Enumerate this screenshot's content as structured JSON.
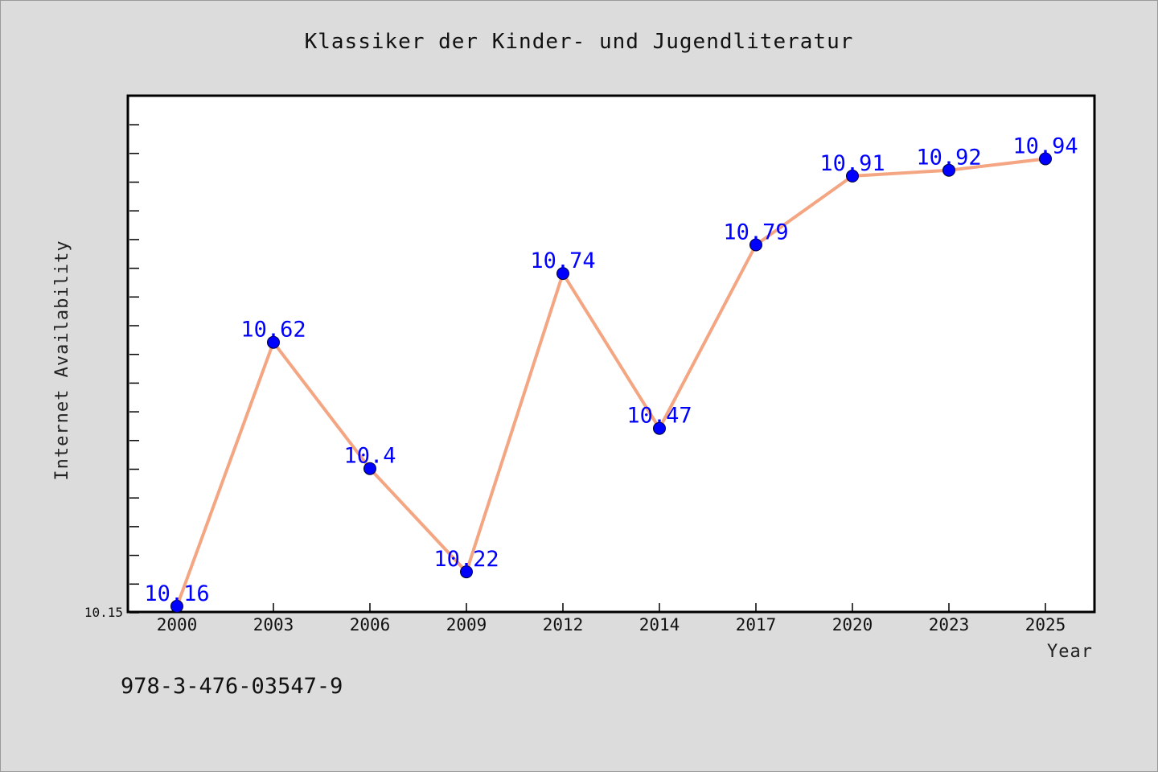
{
  "chart_data": {
    "type": "line",
    "title": "Klassiker der Kinder- und Jugendliteratur",
    "xlabel": "Year",
    "ylabel": "Internet Availability",
    "categories": [
      "2000",
      "2003",
      "2006",
      "2009",
      "2012",
      "2014",
      "2017",
      "2020",
      "2023",
      "2025"
    ],
    "series": [
      {
        "values": [
          10.16,
          10.62,
          10.4,
          10.22,
          10.74,
          10.47,
          10.79,
          10.91,
          10.92,
          10.94
        ],
        "data_labels": [
          "10.16",
          "10.62",
          "10.4",
          "10.22",
          "10.74",
          "10.47",
          "10.79",
          "10.91",
          "10.92",
          "10.94"
        ],
        "line_color": "#f4a582",
        "marker_color": "#0000ff"
      }
    ],
    "ylim": [
      10.15,
      11.05
    ],
    "y_tick_label": "10.15",
    "grid": false,
    "legend": "none"
  },
  "footer": {
    "isbn": "978-3-476-03547-9"
  },
  "colors": {
    "background": "#dcdcdc",
    "plot_background": "#ffffff",
    "line": "#f4a582",
    "marker": "#0000ff",
    "data_label": "#0000ff"
  }
}
